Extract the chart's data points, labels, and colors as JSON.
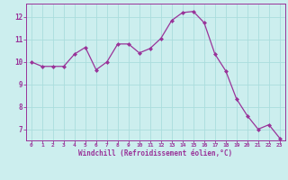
{
  "x": [
    0,
    1,
    2,
    3,
    4,
    5,
    6,
    7,
    8,
    9,
    10,
    11,
    12,
    13,
    14,
    15,
    16,
    17,
    18,
    19,
    20,
    21,
    22,
    23
  ],
  "y": [
    10.0,
    9.8,
    9.8,
    9.8,
    10.35,
    10.65,
    9.65,
    10.0,
    10.8,
    10.8,
    10.4,
    10.6,
    11.05,
    11.85,
    12.2,
    12.25,
    11.75,
    10.35,
    9.6,
    8.35,
    7.6,
    7.0,
    7.2,
    6.6
  ],
  "line_color": "#993399",
  "marker_color": "#993399",
  "bg_color": "#cceeee",
  "grid_color": "#aadddd",
  "axis_color": "#993399",
  "xlabel": "Windchill (Refroidissement éolien,°C)",
  "ylim": [
    6.5,
    12.6
  ],
  "xlim": [
    -0.5,
    23.5
  ],
  "yticks": [
    7,
    8,
    9,
    10,
    11,
    12
  ],
  "xticks": [
    0,
    1,
    2,
    3,
    4,
    5,
    6,
    7,
    8,
    9,
    10,
    11,
    12,
    13,
    14,
    15,
    16,
    17,
    18,
    19,
    20,
    21,
    22,
    23
  ]
}
